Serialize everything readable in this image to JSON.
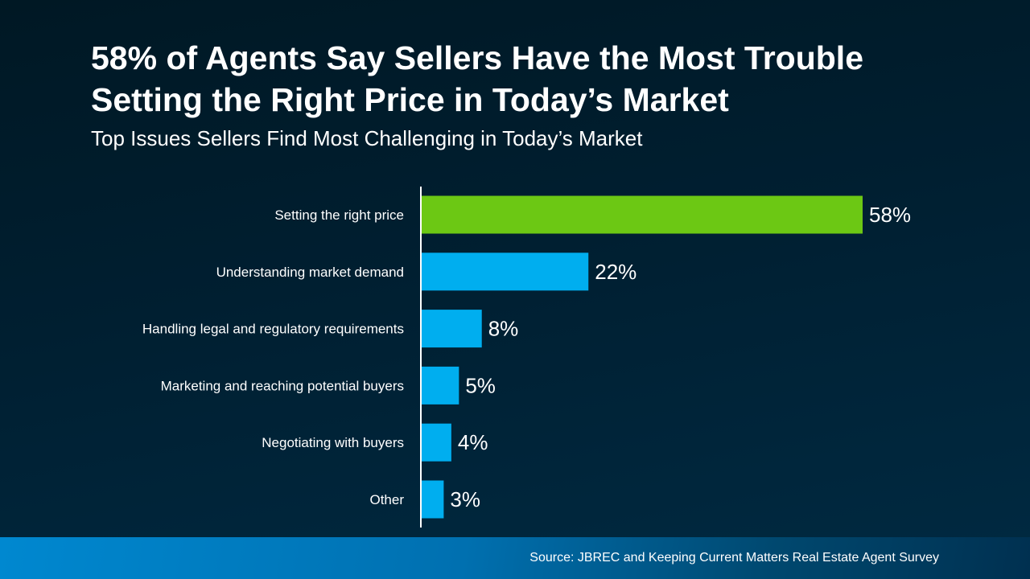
{
  "title": "58% of Agents Say Sellers Have the Most Trouble Setting the Right Price in Today’s Market",
  "subtitle": "Top Issues Sellers Find Most Challenging in Today’s Market",
  "source": "Source: JBREC and Keeping Current Matters Real Estate Agent Survey",
  "chart_data": {
    "type": "bar",
    "orientation": "horizontal",
    "title": "Top Issues Sellers Find Most Challenging in Today’s Market",
    "categories": [
      "Setting the right price",
      "Understanding market demand",
      "Handling legal and regulatory requirements",
      "Marketing and reaching potential buyers",
      "Negotiating with buyers",
      "Other"
    ],
    "values": [
      58,
      22,
      8,
      5,
      4,
      3
    ],
    "labels": [
      "58%",
      "22%",
      "8%",
      "5%",
      "4%",
      "3%"
    ],
    "unit": "%",
    "xlim": [
      0,
      60
    ],
    "grid": false,
    "colors": {
      "highlight": "#6cc814",
      "default": "#00aeef",
      "axis": "#ffffff"
    }
  }
}
